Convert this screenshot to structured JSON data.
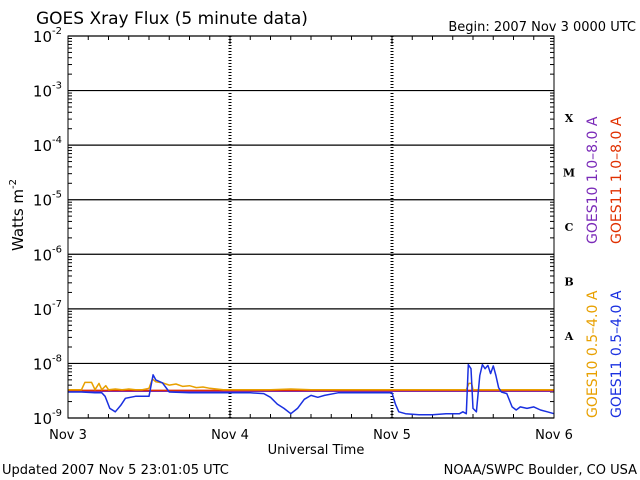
{
  "page": {
    "title": "GOES Xray Flux (5 minute data)",
    "begin": "Begin:  2007 Nov 3 0000 UTC",
    "updated": "Updated 2007 Nov  5 23:01:05 UTC",
    "source": "NOAA/SWPC Boulder, CO USA"
  },
  "chart_data": {
    "type": "line",
    "title": "GOES Xray Flux (5 minute data)",
    "xlabel": "Universal Time",
    "ylabel": "Watts m",
    "ylabel_sup": "-2",
    "y_scale": "log",
    "ylim": [
      1e-09,
      0.01
    ],
    "xlim": [
      0,
      72
    ],
    "x_unit": "hours since 2007 Nov 3 0000 UTC",
    "x_ticks": [
      {
        "x": 0,
        "label": "Nov 3"
      },
      {
        "x": 24,
        "label": "Nov 4"
      },
      {
        "x": 48,
        "label": "Nov 5"
      },
      {
        "x": 72,
        "label": "Nov 6"
      }
    ],
    "y_ticks": [
      {
        "base": "10",
        "exp": "-9",
        "value": 1e-09
      },
      {
        "base": "10",
        "exp": "-8",
        "value": 1e-08
      },
      {
        "base": "10",
        "exp": "-7",
        "value": 1e-07
      },
      {
        "base": "10",
        "exp": "-6",
        "value": 1e-06
      },
      {
        "base": "10",
        "exp": "-5",
        "value": 1e-05
      },
      {
        "base": "10",
        "exp": "-4",
        "value": 0.0001
      },
      {
        "base": "10",
        "exp": "-3",
        "value": 0.001
      },
      {
        "base": "10",
        "exp": "-2",
        "value": 0.01
      }
    ],
    "flare_classes": [
      {
        "label": "A",
        "value": 3.16e-08
      },
      {
        "label": "B",
        "value": 3.16e-07
      },
      {
        "label": "C",
        "value": 3.16e-06
      },
      {
        "label": "M",
        "value": 3.16e-05
      },
      {
        "label": "X",
        "value": 0.000316
      }
    ],
    "grid": true,
    "legend_position": "right-vertical",
    "series": [
      {
        "name": "GOES10 1.0–8.0 A",
        "color": "#7a2ab8",
        "x": [
          0,
          72
        ],
        "y": [
          3.1e-09,
          3.1e-09
        ]
      },
      {
        "name": "GOES11 1.0–8.0 A",
        "color": "#e03000",
        "x": [
          0,
          72
        ],
        "y": [
          3.2e-09,
          3.2e-09
        ]
      },
      {
        "name": "GOES10 0.5–4.0 A",
        "color": "#e8a000",
        "x": [
          0,
          2,
          2.5,
          3.5,
          4,
          4.6,
          5,
          5.6,
          6,
          7,
          8,
          9,
          10,
          11,
          12,
          12.5,
          13,
          14,
          15,
          16,
          17,
          18,
          19,
          20,
          21,
          22,
          23,
          24,
          25,
          26,
          27,
          30,
          33,
          36,
          40,
          44,
          48,
          52,
          56,
          59,
          59.4,
          59.8,
          60,
          61,
          62,
          64,
          68,
          72
        ],
        "y": [
          3.3e-09,
          3.3e-09,
          4.5e-09,
          4.5e-09,
          3.3e-09,
          4.3e-09,
          3.3e-09,
          3.9e-09,
          3.3e-09,
          3.4e-09,
          3.3e-09,
          3.4e-09,
          3.3e-09,
          3.3e-09,
          3.5e-09,
          5.2e-09,
          4.6e-09,
          4.4e-09,
          4e-09,
          4.2e-09,
          3.8e-09,
          3.9e-09,
          3.6e-09,
          3.7e-09,
          3.5e-09,
          3.4e-09,
          3.3e-09,
          3.3e-09,
          3.3e-09,
          3.3e-09,
          3.3e-09,
          3.3e-09,
          3.4e-09,
          3.3e-09,
          3.3e-09,
          3.3e-09,
          3.3e-09,
          3.3e-09,
          3.3e-09,
          3.3e-09,
          4.3e-09,
          4.3e-09,
          3.3e-09,
          3.3e-09,
          3.3e-09,
          3.3e-09,
          3.3e-09,
          3.3e-09
        ]
      },
      {
        "name": "GOES11 0.5–4.0 A",
        "color": "#1a30e0",
        "x": [
          0,
          2,
          4,
          5,
          5.5,
          6.2,
          7,
          7.8,
          8.5,
          10,
          12,
          12.6,
          13,
          14,
          15,
          18,
          21,
          24,
          27,
          29,
          30,
          31,
          32,
          33,
          34,
          35,
          36,
          37,
          38,
          40,
          42,
          44,
          46,
          48,
          48.5,
          49,
          50,
          52,
          54,
          56,
          57,
          58,
          58.5,
          59,
          59.3,
          59.7,
          60,
          60.5,
          61,
          61.4,
          61.8,
          62.2,
          62.6,
          63,
          63.4,
          63.8,
          64.2,
          65,
          65.8,
          66.4,
          67,
          68,
          69,
          70,
          71,
          72
        ],
        "y": [
          3e-09,
          3e-09,
          2.9e-09,
          2.9e-09,
          2.5e-09,
          1.5e-09,
          1.3e-09,
          1.7e-09,
          2.3e-09,
          2.5e-09,
          2.5e-09,
          6.2e-09,
          5e-09,
          4.4e-09,
          3e-09,
          2.9e-09,
          2.9e-09,
          2.9e-09,
          2.9e-09,
          2.8e-09,
          2.4e-09,
          1.8e-09,
          1.5e-09,
          1.2e-09,
          1.5e-09,
          2.2e-09,
          2.6e-09,
          2.4e-09,
          2.6e-09,
          2.9e-09,
          2.9e-09,
          2.9e-09,
          2.9e-09,
          2.9e-09,
          1.8e-09,
          1.3e-09,
          1.2e-09,
          1.15e-09,
          1.15e-09,
          1.2e-09,
          1.2e-09,
          1.2e-09,
          1.3e-09,
          1.2e-09,
          9.5e-09,
          8e-09,
          1.5e-09,
          1.3e-09,
          6e-09,
          9.5e-09,
          8e-09,
          9.2e-09,
          6.5e-09,
          9e-09,
          6e-09,
          3.6e-09,
          3e-09,
          2.8e-09,
          1.6e-09,
          1.4e-09,
          1.6e-09,
          1.5e-09,
          1.6e-09,
          1.4e-09,
          1.3e-09,
          1.2e-09
        ]
      }
    ]
  }
}
